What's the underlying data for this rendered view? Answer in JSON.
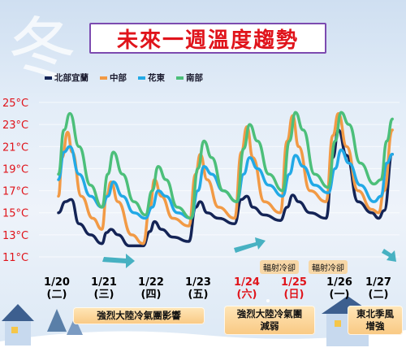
{
  "background_glyph": "冬",
  "title": "未來一週溫度趨勢",
  "legend": [
    {
      "name": "北部宜蘭",
      "color": "#142456"
    },
    {
      "name": "中部",
      "color": "#f29a45"
    },
    {
      "name": "花東",
      "color": "#22a9e6"
    },
    {
      "name": "南部",
      "color": "#4cbf7a"
    }
  ],
  "y_tick_labels": [
    "25°C",
    "23°C",
    "21°C",
    "19°C",
    "17°C",
    "15°C",
    "13°C",
    "11°C"
  ],
  "x_dates": [
    {
      "date": "1/20",
      "day": "(二)",
      "color": "#111111"
    },
    {
      "date": "1/21",
      "day": "(三)",
      "color": "#111111"
    },
    {
      "date": "1/22",
      "day": "(四)",
      "color": "#111111"
    },
    {
      "date": "1/23",
      "day": "(五)",
      "color": "#111111"
    },
    {
      "date": "1/24",
      "day": "(六)",
      "color": "#e0141b"
    },
    {
      "date": "1/25",
      "day": "(日)",
      "color": "#e0141b"
    },
    {
      "date": "1/26",
      "day": "(一)",
      "color": "#111111"
    },
    {
      "date": "1/27",
      "day": "(二)",
      "color": "#111111"
    }
  ],
  "notes": {
    "note_a": "輻射冷卻",
    "note_b": "輻射冷卻",
    "box_1": "強烈大陸冷氣團影響",
    "box_2_line1": "強烈大陸冷氣團",
    "box_2_line2": "減弱",
    "box_3_line1": "東北季風",
    "box_3_line2": "增強"
  },
  "chart_data": {
    "type": "line",
    "title": "未來一週溫度趨勢",
    "xlabel": "",
    "ylabel": "",
    "ylim": [
      11,
      25
    ],
    "y_ticks": [
      25,
      23,
      21,
      19,
      17,
      15,
      13,
      11
    ],
    "y_unit": "°C",
    "x_range_days": [
      0,
      7.35
    ],
    "categories": [
      "1/20 (二)",
      "1/21 (三)",
      "1/22 (四)",
      "1/23 (五)",
      "1/24 (六)",
      "1/25 (日)",
      "1/26 (一)",
      "1/27 (二)"
    ],
    "grid": "horizontal",
    "legend_position": "top-left",
    "series": [
      {
        "name": "北部宜蘭",
        "color": "#142456",
        "x": [
          0.0,
          0.15,
          0.28,
          0.45,
          0.7,
          0.95,
          1.05,
          1.15,
          1.3,
          1.55,
          1.85,
          2.0,
          2.1,
          2.25,
          2.5,
          2.85,
          3.0,
          3.1,
          3.25,
          3.5,
          3.85,
          4.0,
          4.12,
          4.25,
          4.5,
          4.85,
          5.0,
          5.12,
          5.25,
          5.5,
          5.85,
          6.0,
          6.12,
          6.3,
          6.55,
          6.85,
          7.0,
          7.12,
          7.3
        ],
        "values": [
          15.0,
          16.0,
          16.2,
          14.0,
          13.0,
          12.2,
          13.2,
          13.5,
          13.0,
          12.0,
          12.0,
          13.3,
          14.2,
          13.5,
          12.8,
          12.4,
          15.5,
          16.0,
          15.0,
          14.5,
          14.0,
          16.2,
          16.5,
          15.5,
          14.8,
          14.3,
          15.5,
          16.6,
          16.0,
          15.0,
          14.5,
          20.0,
          22.5,
          20.2,
          16.0,
          15.0,
          14.5,
          15.2,
          20.3
        ]
      },
      {
        "name": "中部",
        "color": "#f29a45",
        "x": [
          0.0,
          0.08,
          0.2,
          0.3,
          0.5,
          0.75,
          0.95,
          1.05,
          1.15,
          1.3,
          1.6,
          1.85,
          2.0,
          2.1,
          2.25,
          2.5,
          2.85,
          3.0,
          3.1,
          3.25,
          3.5,
          3.85,
          4.0,
          4.12,
          4.25,
          4.5,
          4.85,
          5.0,
          5.12,
          5.25,
          5.5,
          5.85,
          6.0,
          6.12,
          6.3,
          6.55,
          6.85,
          7.0,
          7.12,
          7.3
        ],
        "values": [
          16.5,
          20.0,
          22.3,
          20.5,
          16.5,
          14.5,
          13.5,
          16.5,
          17.8,
          16.0,
          13.0,
          12.2,
          15.5,
          18.0,
          16.5,
          14.5,
          13.8,
          18.5,
          20.3,
          18.0,
          15.5,
          14.5,
          20.5,
          22.8,
          20.0,
          16.0,
          15.0,
          21.5,
          23.8,
          21.0,
          17.0,
          16.0,
          22.0,
          24.0,
          21.0,
          17.0,
          15.3,
          15.0,
          17.0,
          22.5
        ]
      },
      {
        "name": "花東",
        "color": "#22a9e6",
        "x": [
          0.0,
          0.12,
          0.25,
          0.45,
          0.7,
          0.95,
          1.08,
          1.2,
          1.4,
          1.65,
          1.9,
          2.05,
          2.18,
          2.35,
          2.6,
          2.9,
          3.05,
          3.18,
          3.35,
          3.6,
          3.9,
          4.05,
          4.18,
          4.35,
          4.6,
          4.9,
          5.05,
          5.18,
          5.35,
          5.6,
          5.9,
          6.05,
          6.18,
          6.35,
          6.6,
          6.9,
          7.05,
          7.18,
          7.3
        ],
        "values": [
          18.0,
          20.5,
          21.0,
          18.5,
          16.5,
          15.5,
          16.5,
          17.8,
          16.5,
          15.0,
          14.5,
          15.5,
          17.0,
          16.5,
          15.0,
          14.5,
          17.0,
          19.2,
          18.5,
          17.0,
          16.0,
          18.5,
          20.0,
          19.0,
          17.5,
          16.5,
          18.5,
          20.2,
          19.2,
          17.5,
          16.8,
          19.0,
          20.7,
          19.5,
          17.5,
          16.0,
          16.5,
          19.5,
          20.3
        ]
      },
      {
        "name": "南部",
        "color": "#4cbf7a",
        "x": [
          0.0,
          0.12,
          0.25,
          0.45,
          0.7,
          0.95,
          1.08,
          1.2,
          1.4,
          1.65,
          1.9,
          2.05,
          2.18,
          2.35,
          2.6,
          2.9,
          3.05,
          3.18,
          3.35,
          3.6,
          3.9,
          4.05,
          4.18,
          4.35,
          4.6,
          4.9,
          5.05,
          5.18,
          5.35,
          5.6,
          5.9,
          6.05,
          6.18,
          6.35,
          6.6,
          6.9,
          7.05,
          7.18,
          7.3
        ],
        "values": [
          18.5,
          22.5,
          24.0,
          21.0,
          17.5,
          15.5,
          18.5,
          20.5,
          18.5,
          16.0,
          14.8,
          17.0,
          19.2,
          18.0,
          15.5,
          14.5,
          19.0,
          21.5,
          20.0,
          17.0,
          16.0,
          20.8,
          23.0,
          21.5,
          18.5,
          17.0,
          21.5,
          24.1,
          22.5,
          18.5,
          17.3,
          21.5,
          24.1,
          23.0,
          19.5,
          17.6,
          18.0,
          21.5,
          23.5
        ]
      }
    ]
  }
}
